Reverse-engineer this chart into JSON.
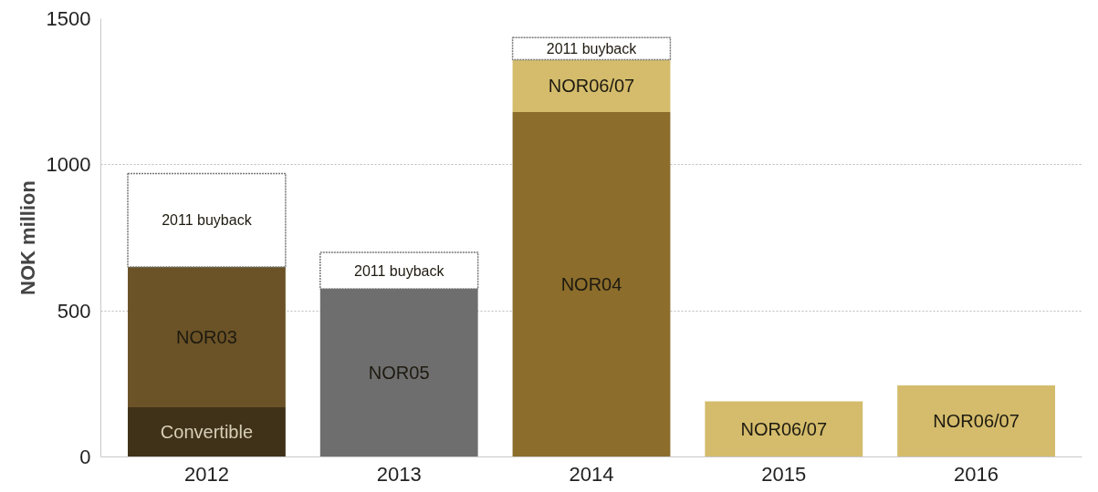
{
  "chart_data": {
    "type": "bar",
    "ylabel": "NOK million",
    "categories": [
      "2012",
      "2013",
      "2014",
      "2015",
      "2016"
    ],
    "stacked": true,
    "ylim": [
      0,
      1500
    ],
    "yticks": [
      0,
      500,
      1000,
      1500
    ],
    "grid": "y",
    "legend": false,
    "series": [
      {
        "name": "Convertible",
        "color": "#3f3218",
        "values": [
          170,
          null,
          null,
          null,
          null
        ]
      },
      {
        "name": "NOR03",
        "color": "#6b5327",
        "values": [
          480,
          null,
          null,
          null,
          null
        ]
      },
      {
        "name": "NOR05",
        "color": "#6e6e6e",
        "values": [
          null,
          575,
          null,
          null,
          null
        ]
      },
      {
        "name": "NOR04",
        "color": "#8c6d2c",
        "values": [
          null,
          null,
          1180,
          null,
          null
        ]
      },
      {
        "name": "NOR06/07",
        "color": "#d4bc6c",
        "values": [
          null,
          null,
          180,
          190,
          245
        ]
      },
      {
        "name": "2011 buyback",
        "color": "#ffffff",
        "values": [
          320,
          125,
          75,
          null,
          null
        ]
      }
    ]
  }
}
